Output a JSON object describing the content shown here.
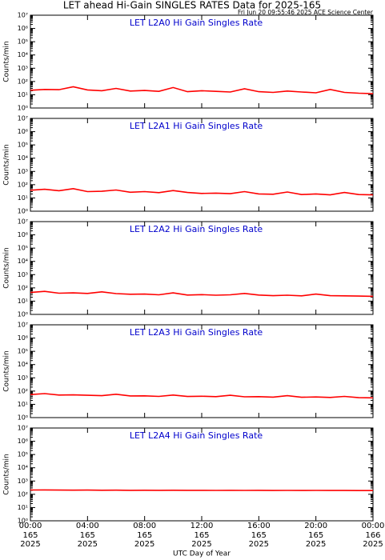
{
  "title": "LET ahead Hi-Gain SINGLES RATES Data for 2025-165",
  "subtitle": "Fri Jun 20 09:55:46 2025 ACE Science Center",
  "chart_data": [
    {
      "type": "line",
      "title": "LET L2A0 Hi Gain Singles Rate",
      "ylabel": "Counts/min",
      "yscale": "log",
      "xlim": [
        0,
        24
      ],
      "xticks": [
        0,
        4,
        8,
        12,
        16,
        20,
        24
      ],
      "ylim": [
        1,
        10000000
      ],
      "yticks": [
        {
          "value": 1,
          "label": "10⁰"
        },
        {
          "value": 10,
          "label": "10¹"
        },
        {
          "value": 100,
          "label": "10²"
        },
        {
          "value": 1000,
          "label": "10³"
        },
        {
          "value": 10000,
          "label": "10⁴"
        },
        {
          "value": 100000,
          "label": "10⁵"
        },
        {
          "value": 1000000,
          "label": "10⁶"
        },
        {
          "value": 10000000,
          "label": "10⁷"
        }
      ],
      "x": [
        0,
        1,
        2,
        3,
        4,
        5,
        6,
        7,
        8,
        9,
        10,
        11,
        12,
        13,
        14,
        15,
        16,
        17,
        18,
        19,
        20,
        21,
        22,
        23,
        24
      ],
      "series": [
        {
          "color": "#ff0000",
          "values": [
            22,
            25,
            24,
            40,
            23,
            20,
            30,
            19,
            21,
            18,
            35,
            17,
            20,
            18,
            16,
            28,
            17,
            15,
            19,
            16,
            14,
            25,
            15,
            13,
            12
          ]
        }
      ]
    },
    {
      "type": "line",
      "title": "LET L2A1 Hi Gain Singles Rate",
      "ylabel": "Counts/min",
      "yscale": "log",
      "xlim": [
        0,
        24
      ],
      "xticks": [
        0,
        4,
        8,
        12,
        16,
        20,
        24
      ],
      "ylim": [
        1,
        10000000
      ],
      "yticks": [
        {
          "value": 1,
          "label": "10⁰"
        },
        {
          "value": 10,
          "label": "10¹"
        },
        {
          "value": 100,
          "label": "10²"
        },
        {
          "value": 1000,
          "label": "10³"
        },
        {
          "value": 10000,
          "label": "10⁴"
        },
        {
          "value": 100000,
          "label": "10⁵"
        },
        {
          "value": 1000000,
          "label": "10⁶"
        },
        {
          "value": 10000000,
          "label": "10⁷"
        }
      ],
      "x": [
        0,
        1,
        2,
        3,
        4,
        5,
        6,
        7,
        8,
        9,
        10,
        11,
        12,
        13,
        14,
        15,
        16,
        17,
        18,
        19,
        20,
        21,
        22,
        23,
        24
      ],
      "series": [
        {
          "color": "#ff0000",
          "values": [
            38,
            45,
            35,
            50,
            30,
            32,
            40,
            27,
            30,
            25,
            36,
            26,
            22,
            23,
            21,
            30,
            20,
            19,
            28,
            18,
            20,
            17,
            26,
            18,
            17
          ]
        }
      ]
    },
    {
      "type": "line",
      "title": "LET L2A2 Hi Gain Singles Rate",
      "ylabel": "Counts/min",
      "yscale": "log",
      "xlim": [
        0,
        24
      ],
      "xticks": [
        0,
        4,
        8,
        12,
        16,
        20,
        24
      ],
      "ylim": [
        1,
        10000000
      ],
      "yticks": [
        {
          "value": 1,
          "label": "10⁰"
        },
        {
          "value": 10,
          "label": "10¹"
        },
        {
          "value": 100,
          "label": "10²"
        },
        {
          "value": 1000,
          "label": "10³"
        },
        {
          "value": 10000,
          "label": "10⁴"
        },
        {
          "value": 100000,
          "label": "10⁵"
        },
        {
          "value": 1000000,
          "label": "10⁶"
        },
        {
          "value": 10000000,
          "label": "10⁷"
        }
      ],
      "x": [
        0,
        1,
        2,
        3,
        4,
        5,
        6,
        7,
        8,
        9,
        10,
        11,
        12,
        13,
        14,
        15,
        16,
        17,
        18,
        19,
        20,
        21,
        22,
        23,
        24
      ],
      "series": [
        {
          "color": "#ff0000",
          "values": [
            45,
            55,
            40,
            42,
            38,
            50,
            37,
            33,
            34,
            30,
            42,
            29,
            31,
            28,
            30,
            38,
            29,
            26,
            28,
            25,
            34,
            26,
            25,
            24,
            23
          ]
        }
      ]
    },
    {
      "type": "line",
      "title": "LET L2A3 Hi Gain Singles Rate",
      "ylabel": "Counts/min",
      "yscale": "log",
      "xlim": [
        0,
        24
      ],
      "xticks": [
        0,
        4,
        8,
        12,
        16,
        20,
        24
      ],
      "ylim": [
        1,
        10000000
      ],
      "yticks": [
        {
          "value": 1,
          "label": "10⁰"
        },
        {
          "value": 10,
          "label": "10¹"
        },
        {
          "value": 100,
          "label": "10²"
        },
        {
          "value": 1000,
          "label": "10³"
        },
        {
          "value": 10000,
          "label": "10⁴"
        },
        {
          "value": 100000,
          "label": "10⁵"
        },
        {
          "value": 1000000,
          "label": "10⁶"
        },
        {
          "value": 10000000,
          "label": "10⁷"
        }
      ],
      "x": [
        0,
        1,
        2,
        3,
        4,
        5,
        6,
        7,
        8,
        9,
        10,
        11,
        12,
        13,
        14,
        15,
        16,
        17,
        18,
        19,
        20,
        21,
        22,
        23,
        24
      ],
      "series": [
        {
          "color": "#ff0000",
          "values": [
            55,
            65,
            50,
            52,
            48,
            45,
            58,
            43,
            44,
            40,
            50,
            39,
            41,
            38,
            48,
            37,
            38,
            35,
            45,
            34,
            36,
            33,
            40,
            32,
            31
          ]
        }
      ]
    },
    {
      "type": "line",
      "title": "LET L2A4 Hi Gain Singles Rate",
      "ylabel": "Counts/min",
      "yscale": "log",
      "xlabel": "UTC Day of Year",
      "xlim": [
        0,
        24
      ],
      "xticks": [
        {
          "value": 0,
          "label": "00:00\n165\n2025"
        },
        {
          "value": 4,
          "label": "04:00\n165\n2025"
        },
        {
          "value": 8,
          "label": "08:00\n165\n2025"
        },
        {
          "value": 12,
          "label": "12:00\n165\n2025"
        },
        {
          "value": 16,
          "label": "16:00\n165\n2025"
        },
        {
          "value": 20,
          "label": "20:00\n165\n2025"
        },
        {
          "value": 24,
          "label": "00:00\n166\n2025"
        }
      ],
      "ylim": [
        1,
        10000000
      ],
      "yticks": [
        {
          "value": 1,
          "label": "10⁰"
        },
        {
          "value": 10,
          "label": "10¹"
        },
        {
          "value": 100,
          "label": "10²"
        },
        {
          "value": 1000,
          "label": "10³"
        },
        {
          "value": 10000,
          "label": "10⁴"
        },
        {
          "value": 100000,
          "label": "10⁵"
        },
        {
          "value": 1000000,
          "label": "10⁶"
        },
        {
          "value": 10000000,
          "label": "10⁷"
        }
      ],
      "x": [
        0,
        1,
        2,
        3,
        4,
        5,
        6,
        7,
        8,
        9,
        10,
        11,
        12,
        13,
        14,
        15,
        16,
        17,
        18,
        19,
        20,
        21,
        22,
        23,
        24
      ],
      "series": [
        {
          "color": "#ff0000",
          "values": [
            210,
            212,
            208,
            205,
            207,
            203,
            205,
            200,
            202,
            199,
            201,
            198,
            200,
            197,
            199,
            196,
            198,
            195,
            197,
            194,
            196,
            193,
            195,
            192,
            190
          ]
        }
      ]
    }
  ]
}
